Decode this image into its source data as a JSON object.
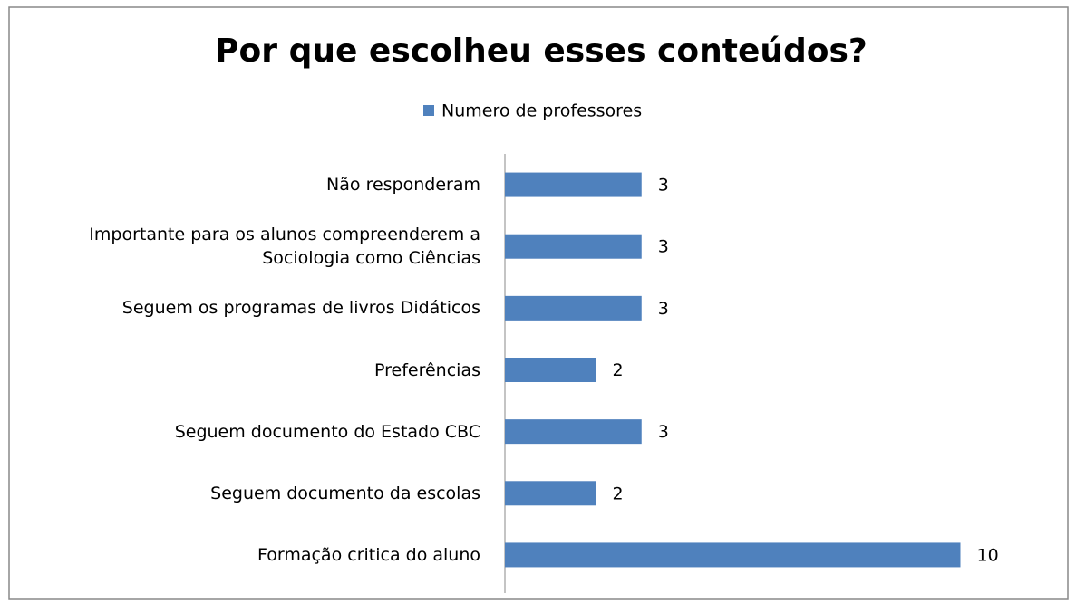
{
  "chart_data": {
    "type": "hbar",
    "title": "Por que escolheu esses conteúdos?",
    "categories": [
      "Não responderam",
      "Importante para os alunos compreenderem a Sociologia como Ciências",
      "Seguem os programas de livros Didáticos",
      "Preferências",
      "Seguem documento do Estado CBC",
      "Seguem documento da escolas",
      "Formação critica do aluno"
    ],
    "series": [
      {
        "name": "Numero de professores",
        "color": "#4f81bd",
        "values": [
          3,
          3,
          3,
          2,
          3,
          2,
          10
        ]
      }
    ],
    "xlim": [
      0,
      12
    ],
    "legend": "top"
  }
}
